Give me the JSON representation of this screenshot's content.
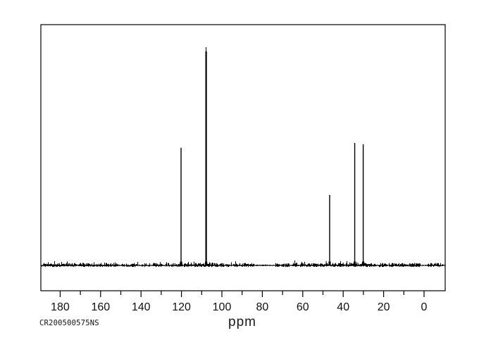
{
  "window": {
    "background_color": "#ffffff"
  },
  "labels": {
    "x_unit": "ppm",
    "sample_id": "CR200500575NS"
  },
  "chart_data": {
    "type": "line",
    "subtype": "13C-NMR-spectrum",
    "title": "",
    "xlabel": "ppm",
    "ylabel": "",
    "grid": false,
    "legend": false,
    "line_color": "#000000",
    "background_color": "#ffffff",
    "x_axis": {
      "min": 190,
      "max": -10,
      "inverted": true,
      "major_ticks": [
        180,
        160,
        140,
        120,
        100,
        80,
        60,
        40,
        20,
        0
      ],
      "minor_ticks": [
        170,
        150,
        130,
        110,
        90,
        70,
        50,
        30,
        10
      ]
    },
    "peaks": [
      {
        "ppm": 120.2,
        "rel_intensity": 0.539
      },
      {
        "ppm": 107.8,
        "rel_intensity": 1.0
      },
      {
        "ppm": 46.7,
        "rel_intensity": 0.323
      },
      {
        "ppm": 34.3,
        "rel_intensity": 0.561
      },
      {
        "ppm": 30.1,
        "rel_intensity": 0.555
      }
    ],
    "minor_spikes": [
      {
        "ppm": 48.4,
        "rel_intensity": 0.02
      },
      {
        "ppm": 40.0,
        "rel_intensity": 0.013
      },
      {
        "ppm": 36.6,
        "rel_intensity": 0.01
      },
      {
        "ppm": 33.2,
        "rel_intensity": 0.015
      }
    ],
    "baseline": {
      "noise": true,
      "quiet_regions_ppm": [
        [
          74,
          84
        ],
        [
          -1.5,
          1.8
        ]
      ]
    },
    "annotations": [
      {
        "text": "CR200500575NS",
        "position": "bottom-left"
      },
      {
        "text": "ppm",
        "position": "bottom-center"
      }
    ]
  }
}
